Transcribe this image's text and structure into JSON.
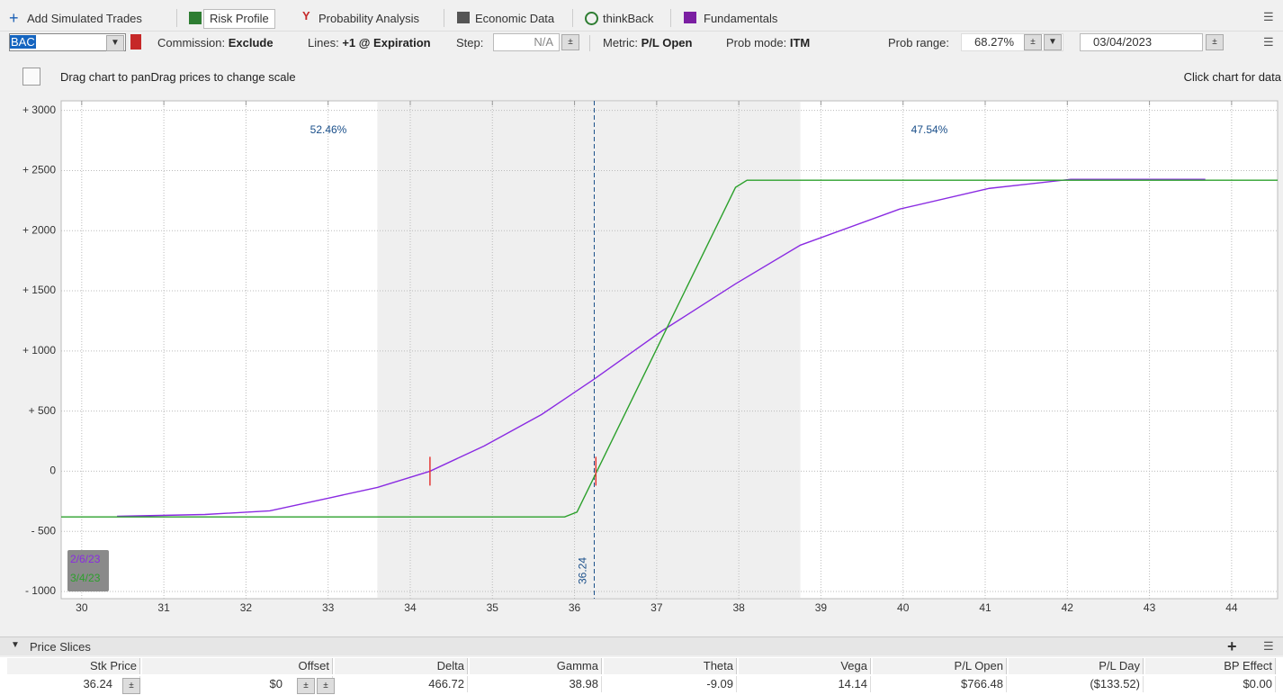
{
  "toolbar": {
    "tabs": [
      "Add Simulated Trades",
      "Risk Profile",
      "Probability Analysis",
      "Economic Data",
      "thinkBack",
      "Fundamentals"
    ]
  },
  "controls": {
    "symbol": "BAC",
    "commission_label": "Commission:",
    "commission": "Exclude",
    "lines_label": "Lines:",
    "lines": "+1 @ Expiration",
    "step_label": "Step:",
    "step": "N/A",
    "metric_label": "Metric:",
    "metric": "P/L Open",
    "prob_mode_label": "Prob mode:",
    "prob_mode": "ITM",
    "prob_range_label": "Prob range:",
    "prob_range": "68.27%",
    "date": "03/04/2023"
  },
  "hint": "Drag chart to panDrag prices to change scale",
  "hint_right": "Click chart for data",
  "chart_data": {
    "type": "line",
    "xlim": [
      29.75,
      44.56
    ],
    "ylim": [
      -1060,
      3080
    ],
    "xticks": [
      30,
      31,
      32,
      33,
      34,
      35,
      36,
      37,
      38,
      39,
      40,
      41,
      42,
      43,
      44
    ],
    "yticks": [
      {
        "value": 3000,
        "label": "+ 3000"
      },
      {
        "value": 2500,
        "label": "+ 2500"
      },
      {
        "value": 2000,
        "label": "+ 2000"
      },
      {
        "value": 1500,
        "label": "+ 1500"
      },
      {
        "value": 1000,
        "label": "+ 1000"
      },
      {
        "value": 500,
        "label": "+ 500"
      },
      0,
      {
        "value": -500,
        "label": "- 500"
      },
      {
        "value": -1000,
        "label": "- 1000"
      }
    ],
    "grid": true,
    "itm_range": [
      33.6,
      38.75
    ],
    "probabilities": [
      "52.46%",
      "47.54%"
    ],
    "current_price": 36.24,
    "breakevens": [
      34.24,
      36.26
    ],
    "series": [
      {
        "name": "2/6/23",
        "color": "#8a2be2",
        "x": [
          30.43,
          31.5,
          32.29,
          33.05,
          33.6,
          34.24,
          34.9,
          35.6,
          36.24,
          37.07,
          37.96,
          38.75,
          39.96,
          41.05,
          42.04,
          43.68
        ],
        "values": [
          -375,
          -360,
          -330,
          -217,
          -135,
          0,
          210,
          472,
          766,
          1169,
          1558,
          1880,
          2180,
          2352,
          2427,
          2427
        ]
      },
      {
        "name": "3/4/23",
        "color": "#2ca02c",
        "x": [
          29.75,
          35.88,
          36.03,
          37.96,
          38.1,
          44.56
        ],
        "values": [
          -380,
          -380,
          -340,
          2360,
          2420,
          2420
        ]
      }
    ]
  },
  "price_slices": {
    "title": "Price Slices",
    "columns": [
      "Stk Price",
      "Offset",
      "Delta",
      "Gamma",
      "Theta",
      "Vega",
      "P/L Open",
      "P/L Day",
      "BP Effect"
    ],
    "row": [
      "36.24",
      "$0",
      "466.72",
      "38.98",
      "-9.09",
      "14.14",
      "$766.48",
      "($133.52)",
      "$0.00"
    ]
  }
}
